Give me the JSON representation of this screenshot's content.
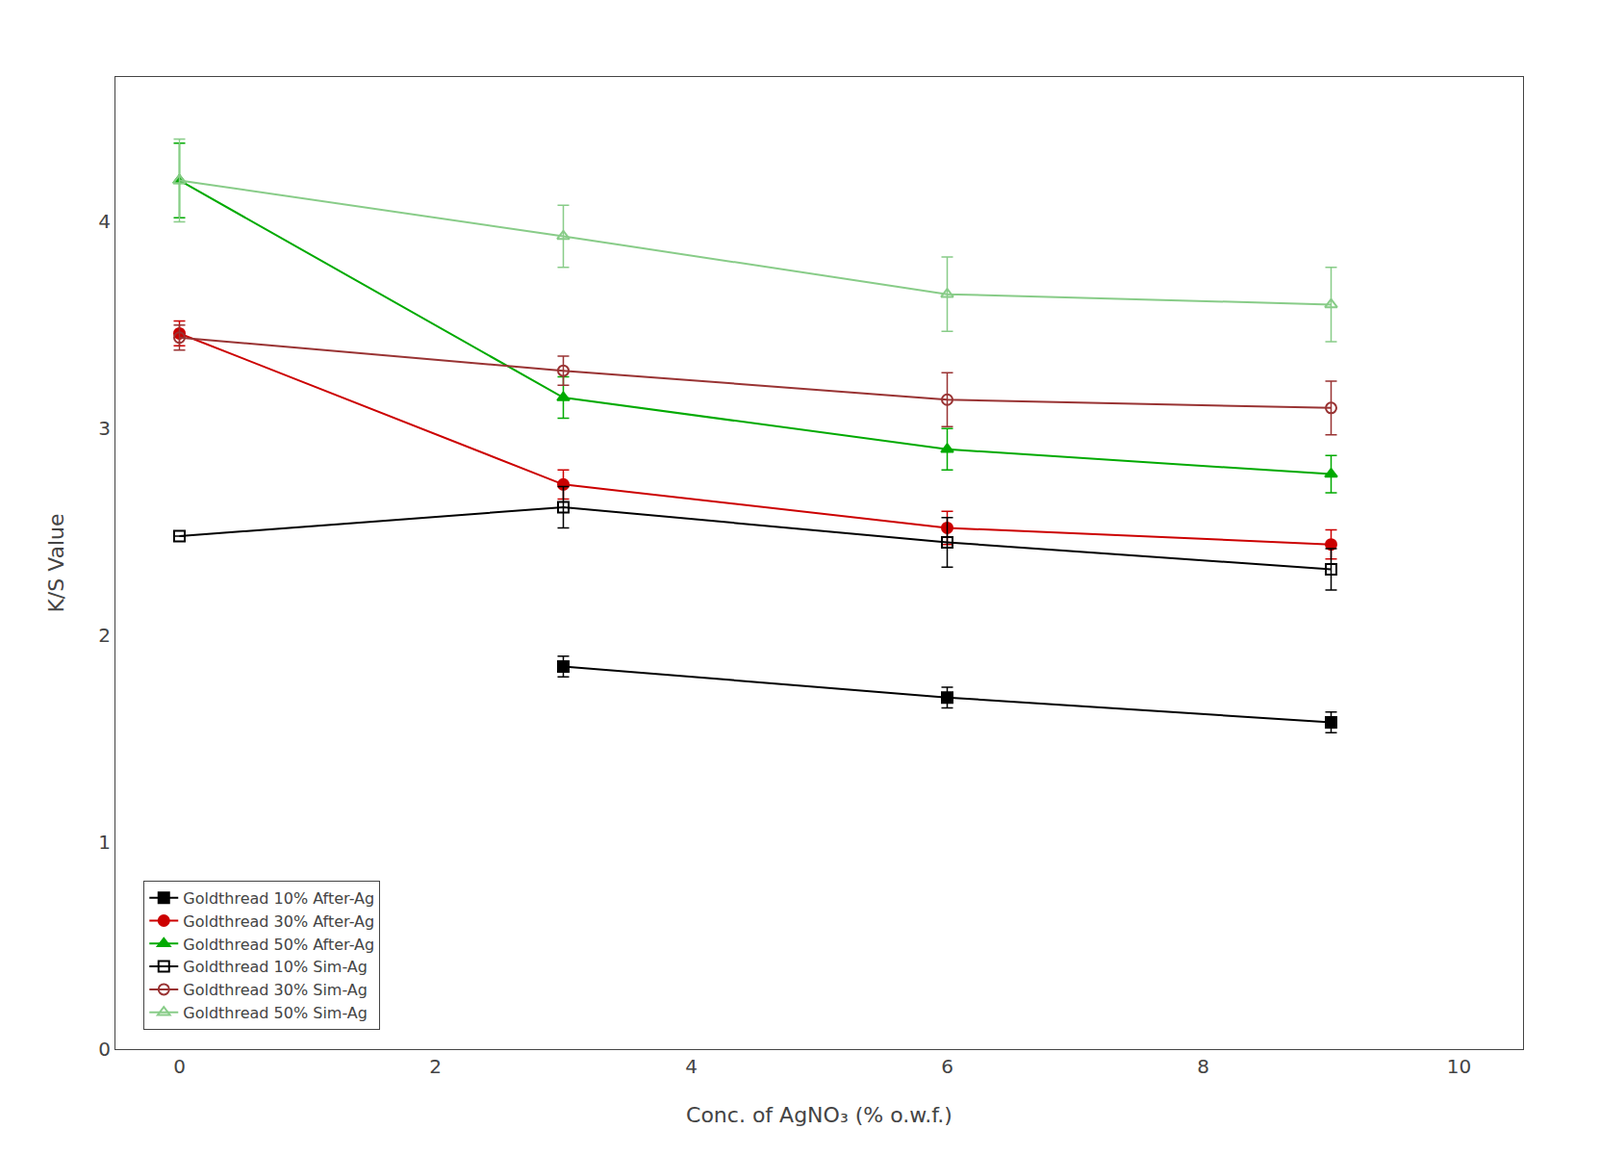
{
  "chart_data": {
    "type": "line",
    "x": [
      0,
      3,
      6,
      9
    ],
    "series": [
      {
        "name": "Goldthread 10% After-Ag",
        "color": "#000000",
        "marker": "square",
        "line_style": "solid",
        "values": [
          null,
          1.85,
          1.7,
          1.58
        ],
        "errors": [
          null,
          0.05,
          0.05,
          0.05
        ]
      },
      {
        "name": "Goldthread 30% After-Ag",
        "color": "#cc0000",
        "marker": "circle",
        "line_style": "solid",
        "values": [
          3.46,
          2.73,
          2.52,
          2.44
        ],
        "errors": [
          0.06,
          0.07,
          0.08,
          0.07
        ]
      },
      {
        "name": "Goldthread 50% After-Ag",
        "color": "#00aa00",
        "marker": "triangle-up",
        "line_style": "solid",
        "values": [
          4.2,
          3.15,
          2.9,
          2.78
        ],
        "errors": [
          0.18,
          0.1,
          0.1,
          0.09
        ]
      },
      {
        "name": "Goldthread 10% Sim-Ag",
        "color": "#000000",
        "marker": "square-open",
        "line_style": "solid",
        "values": [
          2.48,
          2.62,
          2.45,
          2.32
        ],
        "errors": [
          0.0,
          0.1,
          0.12,
          0.1
        ]
      },
      {
        "name": "Goldthread 30% Sim-Ag",
        "color": "#993333",
        "marker": "circle-open",
        "line_style": "solid",
        "values": [
          3.44,
          3.28,
          3.14,
          3.1
        ],
        "errors": [
          0.06,
          0.07,
          0.13,
          0.13
        ]
      },
      {
        "name": "Goldthread 50% Sim-Ag",
        "color": "#88cc88",
        "marker": "triangle-up-open",
        "line_style": "solid",
        "values": [
          4.2,
          3.93,
          3.65,
          3.6
        ],
        "errors": [
          0.2,
          0.15,
          0.18,
          0.18
        ]
      }
    ],
    "x_label": "Conc. of AgNO₃ (% o.w.f.)",
    "y_label": "K/S Value",
    "xlim": [
      -0.5,
      10.5
    ],
    "ylim": [
      0,
      4.7
    ],
    "xticks": [
      0,
      2,
      4,
      6,
      8,
      10
    ],
    "yticks": [
      0,
      1,
      2,
      3,
      4
    ],
    "grid": false,
    "legend": "lower left"
  }
}
